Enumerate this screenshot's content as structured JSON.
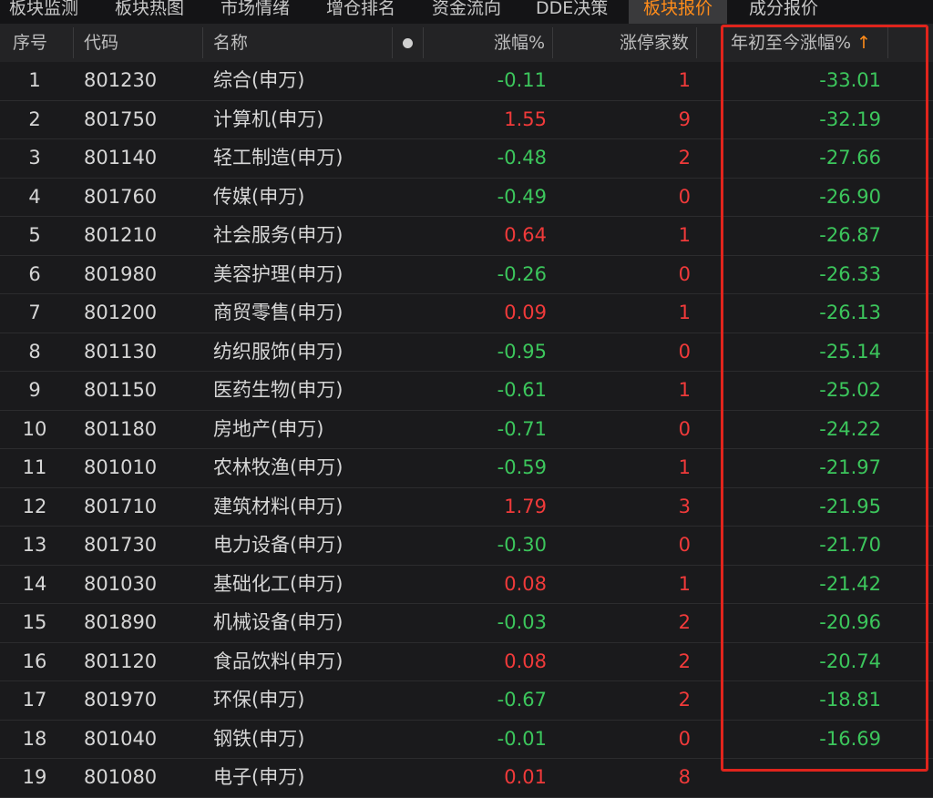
{
  "tabs": [
    {
      "label": "板块监测",
      "active": false
    },
    {
      "label": "板块热图",
      "active": false
    },
    {
      "label": "市场情绪",
      "active": false
    },
    {
      "label": "增仓排名",
      "active": false
    },
    {
      "label": "资金流向",
      "active": false
    },
    {
      "label": "DDE决策",
      "active": false
    },
    {
      "label": "板块报价",
      "active": true
    },
    {
      "label": "成分报价",
      "active": false
    }
  ],
  "columns": {
    "index": "序号",
    "code": "代码",
    "name": "名称",
    "change_pct": "涨幅%",
    "limit_up_count": "涨停家数",
    "ytd_change_pct": "年初至今涨幅%",
    "sort_indicator": "↑"
  },
  "colors": {
    "up": "#f03a3a",
    "down": "#3cc65c",
    "active_tab": "#ff8c1a",
    "highlight_box": "#e0241c"
  },
  "rows": [
    {
      "index": "1",
      "code": "801230",
      "name": "综合(申万)",
      "change_pct": "-0.11",
      "limit_up_count": "1",
      "ytd_change_pct": "-33.01"
    },
    {
      "index": "2",
      "code": "801750",
      "name": "计算机(申万)",
      "change_pct": "1.55",
      "limit_up_count": "9",
      "ytd_change_pct": "-32.19"
    },
    {
      "index": "3",
      "code": "801140",
      "name": "轻工制造(申万)",
      "change_pct": "-0.48",
      "limit_up_count": "2",
      "ytd_change_pct": "-27.66"
    },
    {
      "index": "4",
      "code": "801760",
      "name": "传媒(申万)",
      "change_pct": "-0.49",
      "limit_up_count": "0",
      "ytd_change_pct": "-26.90"
    },
    {
      "index": "5",
      "code": "801210",
      "name": "社会服务(申万)",
      "change_pct": "0.64",
      "limit_up_count": "1",
      "ytd_change_pct": "-26.87"
    },
    {
      "index": "6",
      "code": "801980",
      "name": "美容护理(申万)",
      "change_pct": "-0.26",
      "limit_up_count": "0",
      "ytd_change_pct": "-26.33"
    },
    {
      "index": "7",
      "code": "801200",
      "name": "商贸零售(申万)",
      "change_pct": "0.09",
      "limit_up_count": "1",
      "ytd_change_pct": "-26.13"
    },
    {
      "index": "8",
      "code": "801130",
      "name": "纺织服饰(申万)",
      "change_pct": "-0.95",
      "limit_up_count": "0",
      "ytd_change_pct": "-25.14"
    },
    {
      "index": "9",
      "code": "801150",
      "name": "医药生物(申万)",
      "change_pct": "-0.61",
      "limit_up_count": "1",
      "ytd_change_pct": "-25.02"
    },
    {
      "index": "10",
      "code": "801180",
      "name": "房地产(申万)",
      "change_pct": "-0.71",
      "limit_up_count": "0",
      "ytd_change_pct": "-24.22"
    },
    {
      "index": "11",
      "code": "801010",
      "name": "农林牧渔(申万)",
      "change_pct": "-0.59",
      "limit_up_count": "1",
      "ytd_change_pct": "-21.97"
    },
    {
      "index": "12",
      "code": "801710",
      "name": "建筑材料(申万)",
      "change_pct": "1.79",
      "limit_up_count": "3",
      "ytd_change_pct": "-21.95"
    },
    {
      "index": "13",
      "code": "801730",
      "name": "电力设备(申万)",
      "change_pct": "-0.30",
      "limit_up_count": "0",
      "ytd_change_pct": "-21.70"
    },
    {
      "index": "14",
      "code": "801030",
      "name": "基础化工(申万)",
      "change_pct": "0.08",
      "limit_up_count": "1",
      "ytd_change_pct": "-21.42"
    },
    {
      "index": "15",
      "code": "801890",
      "name": "机械设备(申万)",
      "change_pct": "-0.03",
      "limit_up_count": "2",
      "ytd_change_pct": "-20.96"
    },
    {
      "index": "16",
      "code": "801120",
      "name": "食品饮料(申万)",
      "change_pct": "0.08",
      "limit_up_count": "2",
      "ytd_change_pct": "-20.74"
    },
    {
      "index": "17",
      "code": "801970",
      "name": "环保(申万)",
      "change_pct": "-0.67",
      "limit_up_count": "2",
      "ytd_change_pct": "-18.81"
    },
    {
      "index": "18",
      "code": "801040",
      "name": "钢铁(申万)",
      "change_pct": "-0.01",
      "limit_up_count": "0",
      "ytd_change_pct": "-16.69"
    },
    {
      "index": "19",
      "code": "801080",
      "name": "电子(申万)",
      "change_pct": "0.01",
      "limit_up_count": "8",
      "ytd_change_pct": ""
    }
  ]
}
